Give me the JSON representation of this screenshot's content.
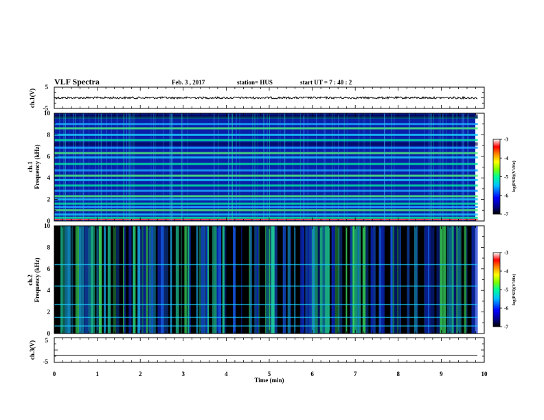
{
  "header": {
    "title": "VLF Spectra",
    "date": "Feb. 3 , 2017",
    "station": "station= HUS",
    "start": "start  UT =   7 : 40 : 2"
  },
  "chart_data": [
    {
      "type": "line",
      "name": "ch1-waveform",
      "ylabel": "ch.1(V)",
      "ylim": [
        -5,
        5
      ],
      "yticks": [
        "5",
        "-5"
      ],
      "xlim": [
        0,
        10
      ],
      "trace_level": 0,
      "trace_end": 9.85
    },
    {
      "type": "heatmap",
      "name": "ch1-spectrogram",
      "ylabel": "ch.1\nFrequency  (kHz)",
      "ylim": [
        0,
        10
      ],
      "yticks": [
        "0",
        "2",
        "4",
        "6",
        "8",
        "10"
      ],
      "xlim": [
        0,
        10
      ],
      "data_end": 9.85,
      "colorbar": {
        "label": "log(PSD)(V²/Hz)",
        "range": [
          -7,
          -3
        ],
        "ticks": [
          "-3",
          "-4",
          "-5",
          "-6",
          "-7"
        ],
        "colors": [
          "#000000",
          "#00008b",
          "#0000ff",
          "#00bfff",
          "#00ff99",
          "#7fff00",
          "#ffff00",
          "#ff8c00",
          "#ff0000",
          "#ffffff"
        ]
      },
      "bands_khz": [
        0.3,
        0.6,
        1.0,
        1.3,
        1.6,
        2.0,
        2.3,
        2.8,
        3.3,
        3.8,
        4.2,
        4.7,
        5.3,
        5.9,
        6.3,
        6.8,
        7.5,
        8.0,
        8.6,
        9.0,
        9.6
      ]
    },
    {
      "type": "heatmap",
      "name": "ch2-spectrogram",
      "ylabel": "ch.2\nFrequency  (kHz)",
      "ylim": [
        0,
        10
      ],
      "yticks": [
        "0",
        "2",
        "4",
        "6",
        "8",
        "10"
      ],
      "xlim": [
        0,
        10
      ],
      "data_end": 9.85,
      "colorbar": {
        "label": "log(PSD)(V²/Hz)",
        "range": [
          -7,
          -3
        ],
        "ticks": [
          "-3",
          "-4",
          "-5",
          "-6",
          "-7"
        ],
        "colors": [
          "#000000",
          "#00008b",
          "#0000ff",
          "#00bfff",
          "#00ff99",
          "#7fff00",
          "#ffff00",
          "#ff8c00",
          "#ff0000",
          "#ffffff"
        ]
      },
      "bands_khz": [
        0.7,
        1.5,
        2.7,
        4.4,
        6.4
      ]
    },
    {
      "type": "line",
      "name": "ch3-waveform",
      "ylabel": "ch.3(V)",
      "ylim": [
        -5,
        5
      ],
      "yticks": [
        "5",
        "-5"
      ],
      "xlim": [
        0,
        10
      ],
      "trace_level": -2.2,
      "trace_end": 9.85
    }
  ],
  "x_axis": {
    "label": "Time  (min)",
    "ticks": [
      "0",
      "1",
      "2",
      "3",
      "4",
      "5",
      "6",
      "7",
      "8",
      "9",
      "10"
    ]
  }
}
